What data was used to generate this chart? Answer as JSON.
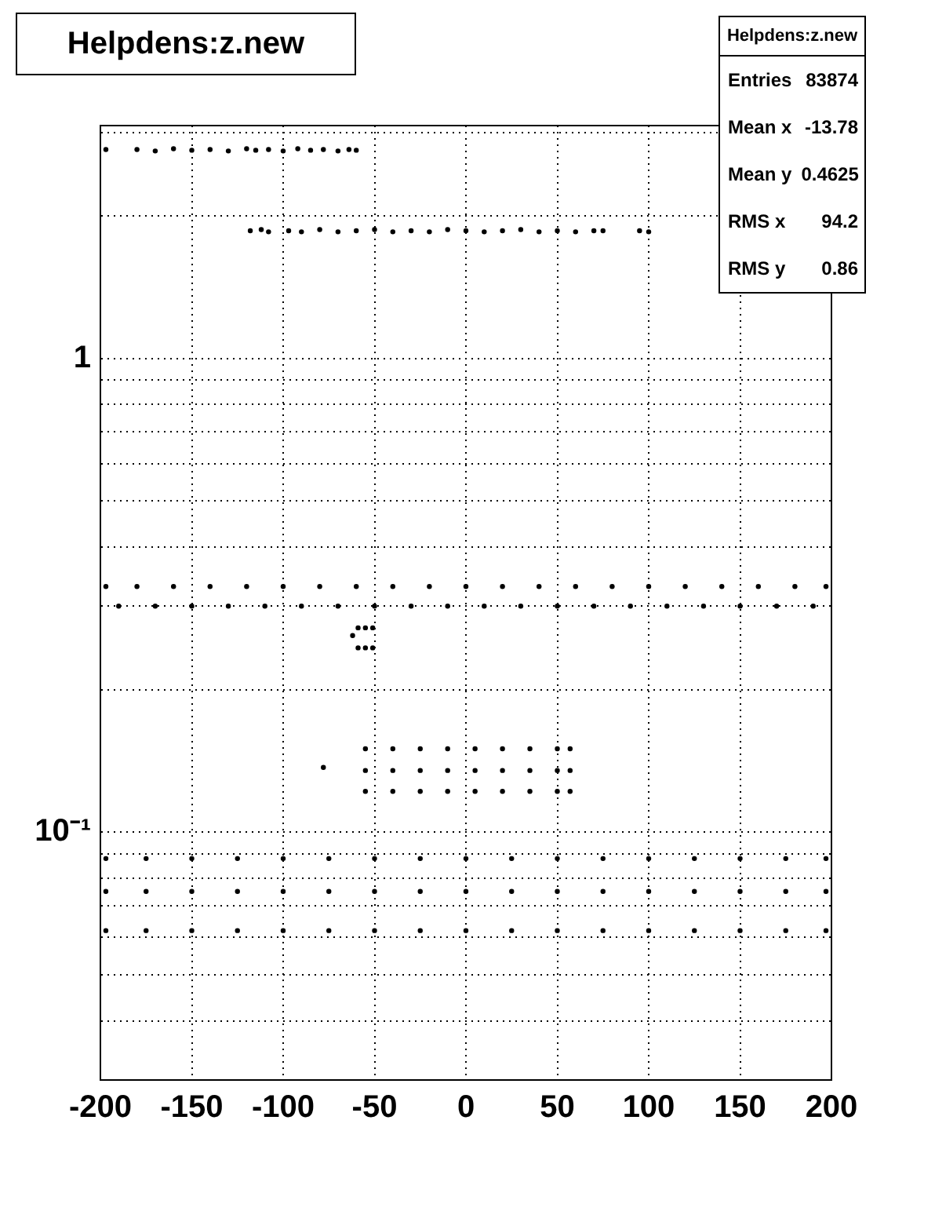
{
  "chart_data": {
    "type": "scatter",
    "title": "Helpdens:z.new",
    "log": "y",
    "grid": true,
    "legend": false,
    "marker": "circle",
    "xlim": [
      -200,
      200
    ],
    "xticks": [
      -200,
      -150,
      -100,
      -50,
      0,
      50,
      100,
      150,
      200
    ],
    "ylim": [
      0.03,
      3.1
    ],
    "yticks": [
      {
        "value": 0.03,
        "label": null
      },
      {
        "value": 0.04,
        "label": null
      },
      {
        "value": 0.05,
        "label": null
      },
      {
        "value": 0.06,
        "label": null
      },
      {
        "value": 0.07,
        "label": null
      },
      {
        "value": 0.08,
        "label": null
      },
      {
        "value": 0.09,
        "label": null
      },
      {
        "value": 0.1,
        "label": "10⁻¹"
      },
      {
        "value": 0.2,
        "label": null
      },
      {
        "value": 0.3,
        "label": null
      },
      {
        "value": 0.4,
        "label": null
      },
      {
        "value": 0.5,
        "label": null
      },
      {
        "value": 0.6,
        "label": null
      },
      {
        "value": 0.7,
        "label": null
      },
      {
        "value": 0.8,
        "label": null
      },
      {
        "value": 0.9,
        "label": null
      },
      {
        "value": 1,
        "label": "1"
      },
      {
        "value": 2,
        "label": null
      },
      {
        "value": 3,
        "label": null
      }
    ],
    "series": [
      {
        "color": "#000000",
        "x": [
          -197,
          -180,
          -170,
          -160,
          -150,
          -140,
          -130,
          -120,
          -115,
          -108,
          -100,
          -92,
          -85,
          -78,
          -70,
          -64,
          -60
        ],
        "values": [
          2.76,
          2.76,
          2.74,
          2.77,
          2.75,
          2.76,
          2.74,
          2.77,
          2.75,
          2.76,
          2.74,
          2.77,
          2.75,
          2.76,
          2.74,
          2.76,
          2.75
        ]
      },
      {
        "color": "#000000",
        "x": [
          -118,
          -112,
          -108,
          -97,
          -90,
          -80,
          -70,
          -60,
          -50,
          -40,
          -30,
          -20,
          -10,
          0,
          10,
          20,
          30,
          40,
          50,
          60,
          70,
          75,
          95,
          100
        ],
        "values": [
          1.86,
          1.87,
          1.85,
          1.86,
          1.85,
          1.87,
          1.85,
          1.86,
          1.87,
          1.85,
          1.86,
          1.85,
          1.87,
          1.86,
          1.85,
          1.86,
          1.87,
          1.85,
          1.86,
          1.85,
          1.86,
          1.86,
          1.86,
          1.85
        ]
      },
      {
        "color": "#000000",
        "x": [
          -197,
          -180,
          -160,
          -140,
          -120,
          -100,
          -80,
          -60,
          -40,
          -20,
          0,
          20,
          40,
          60,
          80,
          100,
          120,
          140,
          160,
          180,
          197,
          -190,
          -170,
          -150,
          -130,
          -110,
          -90,
          -70,
          -50,
          -30,
          -10,
          10,
          30,
          50,
          70,
          90,
          110,
          130,
          150,
          170,
          190
        ],
        "values": [
          0.33,
          0.33,
          0.33,
          0.33,
          0.33,
          0.33,
          0.33,
          0.33,
          0.33,
          0.33,
          0.33,
          0.33,
          0.33,
          0.33,
          0.33,
          0.33,
          0.33,
          0.33,
          0.33,
          0.33,
          0.33,
          0.3,
          0.3,
          0.3,
          0.3,
          0.3,
          0.3,
          0.3,
          0.3,
          0.3,
          0.3,
          0.3,
          0.3,
          0.3,
          0.3,
          0.3,
          0.3,
          0.3,
          0.3,
          0.3,
          0.3
        ]
      },
      {
        "color": "#000000",
        "x": [
          -59,
          -55,
          -51,
          -59,
          -55,
          -51,
          -62
        ],
        "values": [
          0.27,
          0.27,
          0.27,
          0.245,
          0.245,
          0.245,
          0.26
        ]
      },
      {
        "color": "#000000",
        "x": [
          -78,
          -55,
          -40,
          -25,
          -10,
          5,
          20,
          35,
          50,
          57,
          -55,
          -40,
          -25,
          -10,
          5,
          20,
          35,
          50,
          57,
          -55,
          -40,
          -25,
          -10,
          5,
          20,
          35,
          50,
          57
        ],
        "values": [
          0.137,
          0.15,
          0.15,
          0.15,
          0.15,
          0.15,
          0.15,
          0.15,
          0.15,
          0.15,
          0.135,
          0.135,
          0.135,
          0.135,
          0.135,
          0.135,
          0.135,
          0.135,
          0.135,
          0.122,
          0.122,
          0.122,
          0.122,
          0.122,
          0.122,
          0.122,
          0.122,
          0.122
        ]
      },
      {
        "color": "#000000",
        "x": [
          -197,
          -175,
          -150,
          -125,
          -100,
          -75,
          -50,
          -25,
          0,
          25,
          50,
          75,
          100,
          125,
          150,
          175,
          197,
          -197,
          -175,
          -150,
          -125,
          -100,
          -75,
          -50,
          -25,
          0,
          25,
          50,
          75,
          100,
          125,
          150,
          175,
          197,
          -197,
          -175,
          -150,
          -125,
          -100,
          -75,
          -50,
          -25,
          0,
          25,
          50,
          75,
          100,
          125,
          150,
          175,
          197
        ],
        "values": [
          0.088,
          0.088,
          0.088,
          0.088,
          0.088,
          0.088,
          0.088,
          0.088,
          0.088,
          0.088,
          0.088,
          0.088,
          0.088,
          0.088,
          0.088,
          0.088,
          0.088,
          0.075,
          0.075,
          0.075,
          0.075,
          0.075,
          0.075,
          0.075,
          0.075,
          0.075,
          0.075,
          0.075,
          0.075,
          0.075,
          0.075,
          0.075,
          0.075,
          0.075,
          0.062,
          0.062,
          0.062,
          0.062,
          0.062,
          0.062,
          0.062,
          0.062,
          0.062,
          0.062,
          0.062,
          0.062,
          0.062,
          0.062,
          0.062,
          0.062,
          0.062
        ]
      }
    ],
    "annotations": [
      "Helpdens:z.new",
      "Entries 83874",
      "Mean x -13.78",
      "Mean y 0.4625",
      "RMS x 94.2",
      "RMS y 0.86"
    ]
  }
}
